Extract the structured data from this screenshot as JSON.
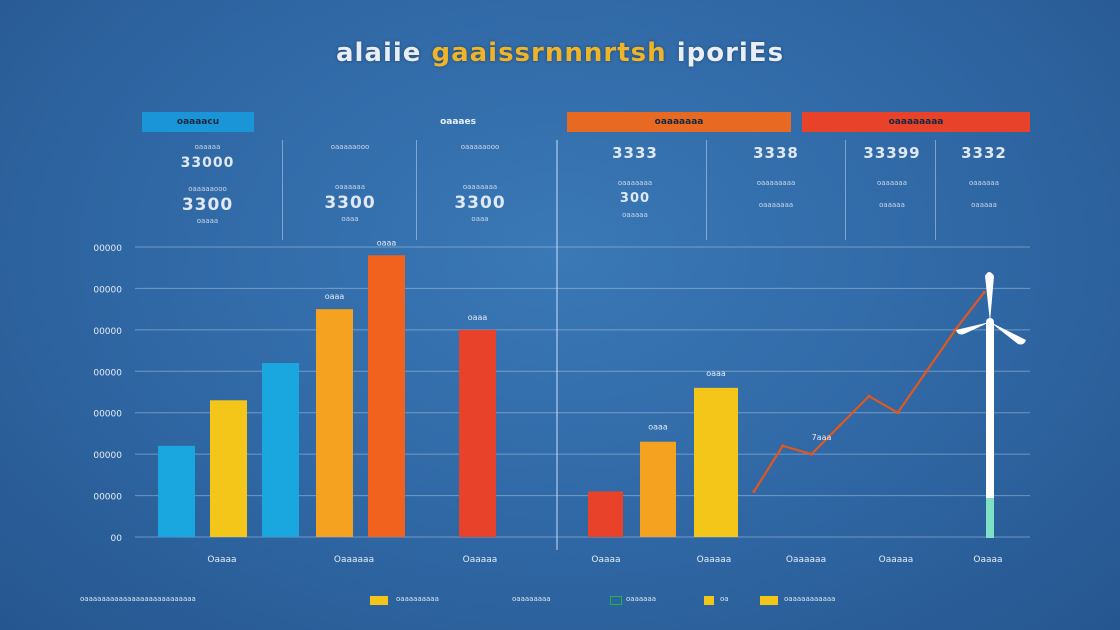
{
  "title": {
    "part1": "alaiie",
    "part2": "gaaissrnnnrtsh",
    "part3": "iporiEs"
  },
  "panels": {
    "left": {
      "headers": [
        "oaaaacu",
        "oaaaes"
      ],
      "stats": [
        {
          "label_top": "oaaaaa",
          "value_top": "33000",
          "label_mid": "oaaaaaooo",
          "value_big": "3300",
          "label_bottom": "oaaaa"
        },
        {
          "label_top": "oaaaaaooo",
          "value_top": "",
          "label_mid": "oaaaaaa",
          "value_big": "3300",
          "label_bottom": "oaaa"
        },
        {
          "label_top": "oaaaaaooo",
          "value_top": "",
          "label_mid": "oaaaaaaa",
          "value_big": "3300",
          "label_bottom": "oaaa"
        }
      ]
    },
    "right": {
      "headers": [
        "oaaaaaaa",
        "oaaaaaaaa"
      ],
      "stats": [
        {
          "value_top": "3333",
          "label_mid": "oaaaaaaa",
          "value_big": "300",
          "label_bottom": "oaaaaa"
        },
        {
          "value_top": "3338",
          "label_mid": "oaaaaaaaa",
          "value_big": "",
          "label_bottom": "oaaaaaaa"
        },
        {
          "value_top": "33399",
          "label_mid": "oaaaaaa",
          "value_big": "",
          "label_bottom": "oaaaaa"
        },
        {
          "value_top": "3332",
          "label_mid": "oaaaaaa",
          "value_big": "",
          "label_bottom": "oaaaaa"
        }
      ]
    }
  },
  "colors": {
    "blue": "#1aa6df",
    "yellow": "#f5c61a",
    "orange": "#f4a21f",
    "orange_red": "#f0621e",
    "red": "#e8432a",
    "teal": "#7fe0c8",
    "header_orange": "#e86a22",
    "header_red": "#e8432a",
    "header_blue": "#1a96d8"
  },
  "chart_data": [
    {
      "type": "bar",
      "categories": [
        "Oaaaa",
        "Oaaaaaa",
        "Oaaaaa"
      ],
      "y_ticks": [
        "00000",
        "00000",
        "00000",
        "00000",
        "00000",
        "00000",
        "00000",
        "00"
      ],
      "ylim": [
        0,
        7
      ],
      "bars": [
        {
          "group": 0,
          "value": 2.2,
          "color": "blue",
          "label": ""
        },
        {
          "group": 0,
          "value": 3.3,
          "color": "yellow",
          "label": ""
        },
        {
          "group": 1,
          "value": 4.2,
          "color": "blue",
          "label": ""
        },
        {
          "group": 1,
          "value": 5.5,
          "color": "orange",
          "label": "oaaa"
        },
        {
          "group": 1,
          "value": 6.8,
          "color": "orange_red",
          "label": "oaaa"
        },
        {
          "group": 2,
          "value": 5.0,
          "color": "red",
          "label": "oaaa"
        }
      ]
    },
    {
      "type": "bar+line",
      "categories": [
        "Oaaaa",
        "Oaaaaa",
        "Oaaaaaa",
        "Oaaaaa",
        "Oaaaa"
      ],
      "ylim": [
        0,
        7
      ],
      "bars": [
        {
          "value": 1.1,
          "color": "red",
          "label": ""
        },
        {
          "value": 2.3,
          "color": "orange",
          "label": "oaaa"
        },
        {
          "value": 3.6,
          "color": "yellow",
          "label": "oaaa"
        }
      ],
      "line": {
        "label": "7aaa",
        "x": [
          0,
          1,
          2,
          3,
          4,
          5,
          6,
          7,
          8
        ],
        "y": [
          1.1,
          2.2,
          2.0,
          2.7,
          3.4,
          3.0,
          4.0,
          5.0,
          5.9
        ]
      }
    }
  ],
  "legend": [
    {
      "text": "oaaaaaaaaaaaaaaaaaaaaaaaaaa",
      "color": ""
    },
    {
      "text": "oaaaaaaaaa",
      "color": "yellow"
    },
    {
      "text": "oaaaaaaaa",
      "color": ""
    },
    {
      "text": "oaaaaaa",
      "color": "green"
    },
    {
      "text": "oa",
      "color": "yellow"
    },
    {
      "text": "oaaaaaaaaaaa",
      "color": "yellow"
    }
  ]
}
